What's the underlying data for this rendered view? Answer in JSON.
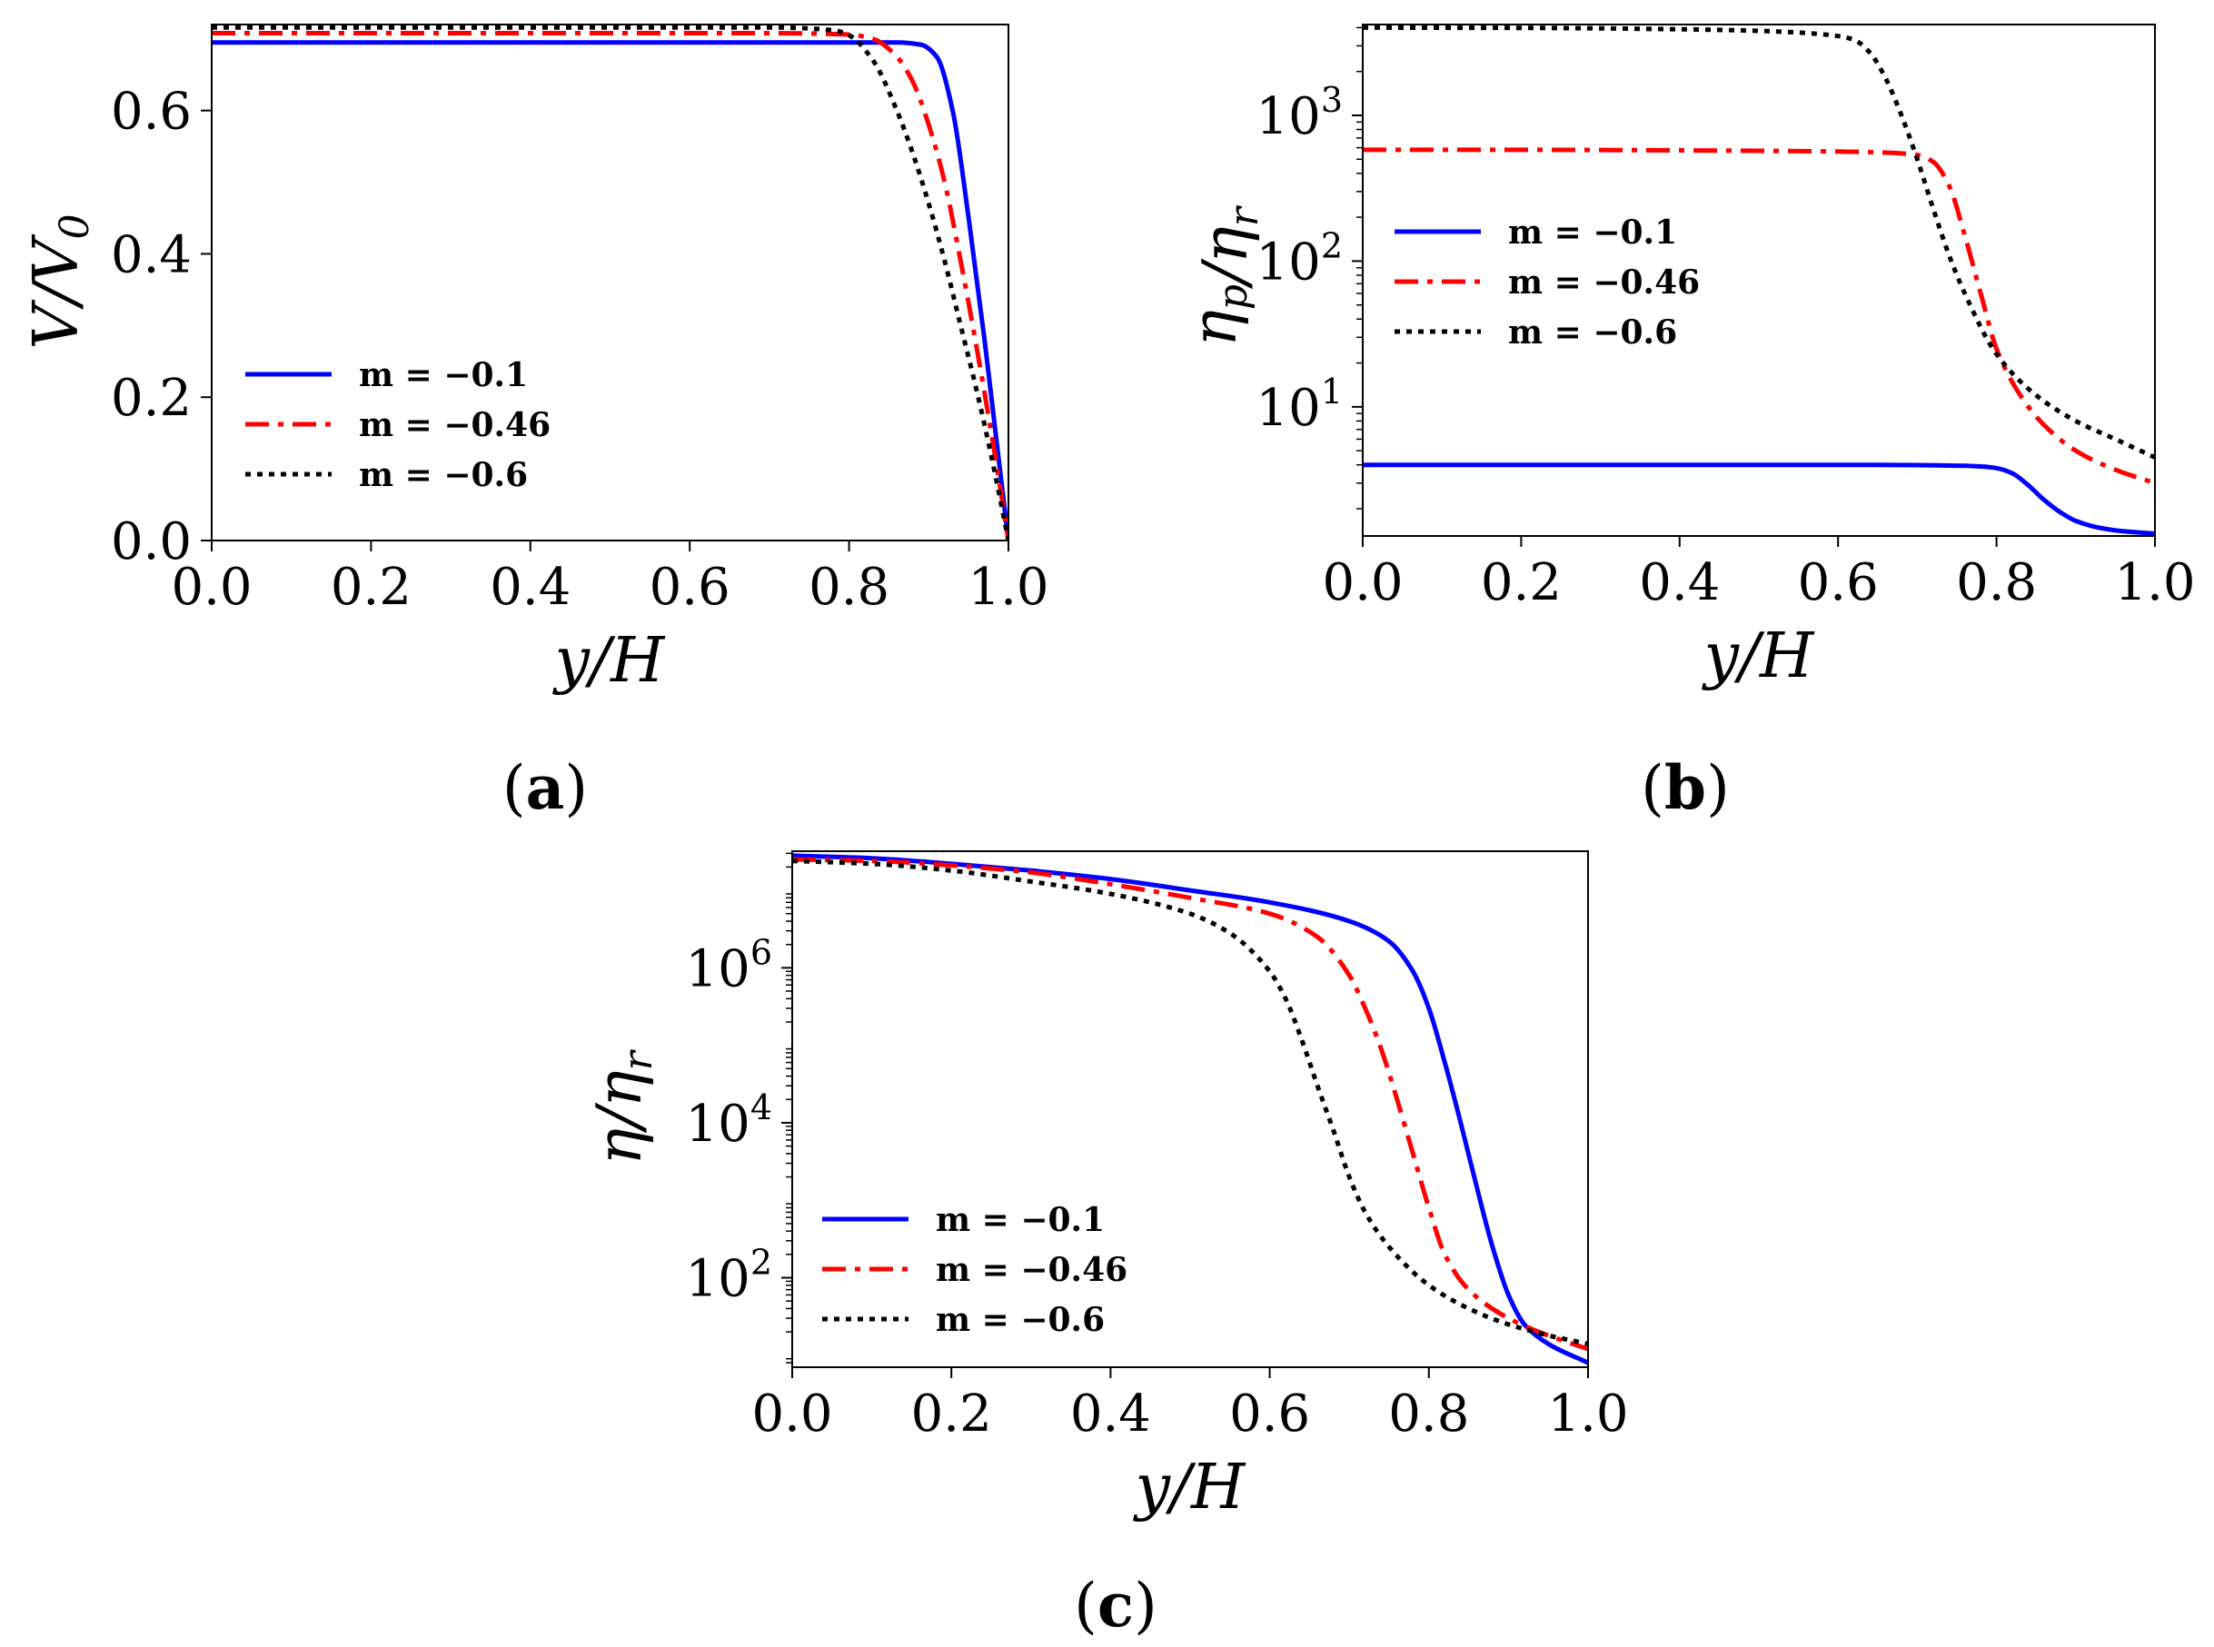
{
  "colors": {
    "blue": "#0000ff",
    "red": "#ff0000",
    "black": "#000000"
  },
  "chart_data": [
    {
      "id": "a",
      "type": "line",
      "panel_label": "(a)",
      "panel_label_parts": [
        "(",
        "a",
        ")"
      ],
      "xlabel": "y/H",
      "ylabel": "V/V0",
      "xlim": [
        0,
        1
      ],
      "ylim": [
        0,
        0.72
      ],
      "yscale": "linear",
      "xticks": [
        0,
        0.2,
        0.4,
        0.6,
        0.8,
        1.0
      ],
      "xtick_labels": [
        "0.0",
        "0.2",
        "0.4",
        "0.6",
        "0.8",
        "1.0"
      ],
      "yticks": [
        0,
        0.2,
        0.4,
        0.6
      ],
      "ytick_labels": [
        "0.0",
        "0.2",
        "0.4",
        "0.6"
      ],
      "legend_position": "center-left",
      "series": [
        {
          "name": "m = −0.1",
          "color": "#0000ff",
          "dash": "solid",
          "x": [
            0,
            0.1,
            0.2,
            0.3,
            0.4,
            0.5,
            0.6,
            0.7,
            0.8,
            0.86,
            0.89,
            0.91,
            0.93,
            0.95,
            0.97,
            0.985,
            1.0
          ],
          "y": [
            0.695,
            0.695,
            0.695,
            0.695,
            0.695,
            0.695,
            0.695,
            0.695,
            0.695,
            0.695,
            0.692,
            0.675,
            0.6,
            0.45,
            0.28,
            0.14,
            0.0
          ]
        },
        {
          "name": "m = −0.46",
          "color": "#ff0000",
          "dash": "dashdot",
          "x": [
            0,
            0.1,
            0.2,
            0.3,
            0.4,
            0.5,
            0.6,
            0.7,
            0.8,
            0.83,
            0.86,
            0.88,
            0.9,
            0.92,
            0.94,
            0.96,
            0.98,
            1.0
          ],
          "y": [
            0.708,
            0.708,
            0.708,
            0.708,
            0.708,
            0.708,
            0.708,
            0.708,
            0.706,
            0.7,
            0.675,
            0.64,
            0.58,
            0.5,
            0.39,
            0.27,
            0.14,
            0.0
          ]
        },
        {
          "name": "m = −0.6",
          "color": "#000000",
          "dash": "dotted",
          "x": [
            0,
            0.1,
            0.2,
            0.3,
            0.4,
            0.5,
            0.6,
            0.7,
            0.78,
            0.8,
            0.83,
            0.86,
            0.88,
            0.9,
            0.92,
            0.94,
            0.96,
            0.98,
            1.0
          ],
          "y": [
            0.716,
            0.716,
            0.716,
            0.716,
            0.716,
            0.716,
            0.716,
            0.716,
            0.712,
            0.705,
            0.67,
            0.6,
            0.54,
            0.47,
            0.39,
            0.3,
            0.21,
            0.11,
            0.0
          ]
        }
      ]
    },
    {
      "id": "b",
      "type": "line",
      "panel_label": "(b)",
      "panel_label_parts": [
        "(",
        "b",
        ")"
      ],
      "xlabel": "y/H",
      "ylabel": "ηp/ηr",
      "xlim": [
        0,
        1
      ],
      "ylim": [
        1.3,
        4200
      ],
      "yscale": "log",
      "xticks": [
        0,
        0.2,
        0.4,
        0.6,
        0.8,
        1.0
      ],
      "xtick_labels": [
        "0.0",
        "0.2",
        "0.4",
        "0.6",
        "0.8",
        "1.0"
      ],
      "yticks": [
        10,
        100,
        1000
      ],
      "ytick_labels": [
        "10^1",
        "10^2",
        "10^3"
      ],
      "legend_position": "center-left",
      "series": [
        {
          "name": "m = −0.1",
          "color": "#0000ff",
          "dash": "solid",
          "x": [
            0,
            0.2,
            0.4,
            0.6,
            0.7,
            0.75,
            0.78,
            0.8,
            0.82,
            0.84,
            0.86,
            0.88,
            0.9,
            0.93,
            0.96,
            1.0
          ],
          "y": [
            4.0,
            4.0,
            4.0,
            4.0,
            3.98,
            3.95,
            3.9,
            3.8,
            3.5,
            2.9,
            2.3,
            1.9,
            1.65,
            1.48,
            1.4,
            1.35
          ]
        },
        {
          "name": "m = −0.46",
          "color": "#ff0000",
          "dash": "dashdot",
          "x": [
            0,
            0.2,
            0.4,
            0.6,
            0.66,
            0.7,
            0.72,
            0.74,
            0.76,
            0.78,
            0.8,
            0.83,
            0.86,
            0.9,
            0.95,
            1.0
          ],
          "y": [
            580,
            580,
            575,
            565,
            555,
            535,
            480,
            330,
            150,
            60,
            25,
            12,
            7.5,
            5,
            3.7,
            3.0
          ]
        },
        {
          "name": "m = −0.6",
          "color": "#000000",
          "dash": "dotted",
          "x": [
            0,
            0.2,
            0.4,
            0.5,
            0.55,
            0.6,
            0.62,
            0.64,
            0.66,
            0.68,
            0.7,
            0.72,
            0.74,
            0.76,
            0.8,
            0.85,
            0.9,
            0.95,
            1.0
          ],
          "y": [
            4000,
            3980,
            3900,
            3800,
            3700,
            3500,
            3300,
            2700,
            1800,
            1000,
            500,
            230,
            110,
            60,
            23,
            12,
            8,
            6,
            4.5
          ]
        }
      ]
    },
    {
      "id": "c",
      "type": "line",
      "panel_label": "(c)",
      "panel_label_parts": [
        "(",
        "c",
        ")"
      ],
      "xlabel": "y/H",
      "ylabel": "η/ηr",
      "xlim": [
        0,
        1
      ],
      "ylim": [
        7,
        32000000
      ],
      "yscale": "log",
      "xticks": [
        0,
        0.2,
        0.4,
        0.6,
        0.8,
        1.0
      ],
      "xtick_labels": [
        "0.0",
        "0.2",
        "0.4",
        "0.6",
        "0.8",
        "1.0"
      ],
      "yticks": [
        100,
        10000,
        1000000
      ],
      "ytick_labels": [
        "10^2",
        "10^4",
        "10^6"
      ],
      "legend_position": "bottom-left",
      "series": [
        {
          "name": "m = −0.1",
          "color": "#0000ff",
          "dash": "solid",
          "x": [
            0,
            0.1,
            0.2,
            0.3,
            0.4,
            0.5,
            0.6,
            0.7,
            0.75,
            0.78,
            0.8,
            0.82,
            0.84,
            0.86,
            0.88,
            0.9,
            0.92,
            0.95,
            1.0
          ],
          "y": [
            28000000,
            26000000,
            22000000,
            18000000,
            14000000,
            10000000,
            7000000,
            4000000,
            2200000,
            900000,
            300000,
            60000,
            10000,
            1500,
            250,
            60,
            25,
            14,
            8
          ]
        },
        {
          "name": "m = −0.46",
          "color": "#ff0000",
          "dash": "dashdot",
          "x": [
            0,
            0.1,
            0.2,
            0.3,
            0.4,
            0.5,
            0.6,
            0.66,
            0.7,
            0.72,
            0.74,
            0.76,
            0.78,
            0.8,
            0.82,
            0.85,
            0.9,
            0.95,
            1.0
          ],
          "y": [
            25000000,
            24000000,
            21000000,
            17000000,
            12000000,
            8000000,
            5000000,
            2500000,
            800000,
            300000,
            90000,
            20000,
            4000,
            800,
            200,
            70,
            30,
            18,
            12
          ]
        },
        {
          "name": "m = −0.6",
          "color": "#000000",
          "dash": "dotted",
          "x": [
            0,
            0.1,
            0.2,
            0.3,
            0.4,
            0.5,
            0.55,
            0.6,
            0.62,
            0.64,
            0.66,
            0.68,
            0.7,
            0.72,
            0.75,
            0.8,
            0.85,
            0.9,
            0.95,
            1.0
          ],
          "y": [
            24000000,
            22000000,
            18000000,
            13000000,
            9000000,
            5000000,
            2800000,
            900000,
            400000,
            120000,
            30000,
            8000,
            2000,
            700,
            250,
            80,
            40,
            25,
            18,
            14
          ]
        }
      ]
    }
  ]
}
